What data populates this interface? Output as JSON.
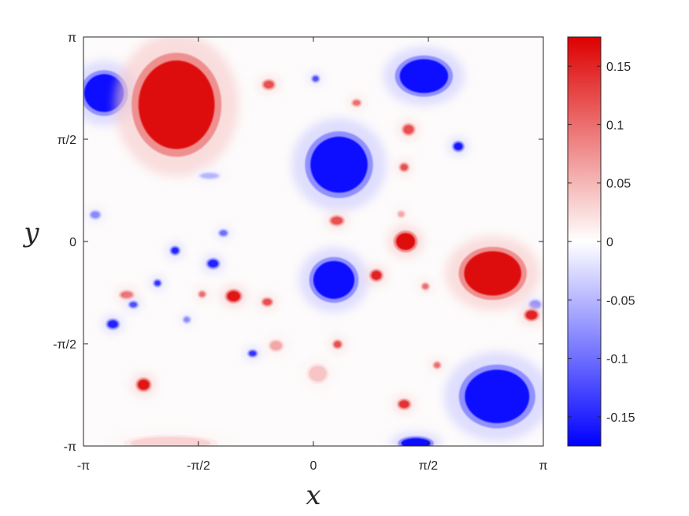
{
  "chart_data": {
    "type": "heatmap",
    "title": "",
    "xlabel": "x",
    "ylabel": "y",
    "xlim": [
      -3.14159,
      3.14159
    ],
    "ylim": [
      -3.14159,
      3.14159
    ],
    "x_ticks": [
      {
        "value": -3.14159,
        "label": "-π"
      },
      {
        "value": -1.5708,
        "label": "-π/2"
      },
      {
        "value": 0,
        "label": "0"
      },
      {
        "value": 1.5708,
        "label": "π/2"
      },
      {
        "value": 3.14159,
        "label": "π"
      }
    ],
    "y_ticks": [
      {
        "value": -3.14159,
        "label": "-π"
      },
      {
        "value": -1.5708,
        "label": "-π/2"
      },
      {
        "value": 0,
        "label": "0"
      },
      {
        "value": 1.5708,
        "label": "π/2"
      },
      {
        "value": 3.14159,
        "label": "π"
      }
    ],
    "colorbar": {
      "min": -0.175,
      "max": 0.175,
      "colors": [
        "#0000ff",
        "#ffffff",
        "#dd0000"
      ],
      "ticks": [
        {
          "value": 0.15,
          "label": "0.15"
        },
        {
          "value": 0.1,
          "label": "0.1"
        },
        {
          "value": 0.05,
          "label": "0.05"
        },
        {
          "value": 0,
          "label": "0"
        },
        {
          "value": -0.05,
          "label": "-0.05"
        },
        {
          "value": -0.1,
          "label": "-0.1"
        },
        {
          "value": -0.15,
          "label": "-0.15"
        }
      ]
    },
    "vortices": [
      {
        "x": -2.86,
        "y": 2.28,
        "rx": 0.27,
        "ry": 0.29,
        "value": -0.17
      },
      {
        "x": -1.87,
        "y": 2.1,
        "rx": 0.52,
        "ry": 0.68,
        "value": 0.17
      },
      {
        "x": 1.51,
        "y": 2.54,
        "rx": 0.33,
        "ry": 0.26,
        "value": -0.17
      },
      {
        "x": 0.35,
        "y": 1.18,
        "rx": 0.39,
        "ry": 0.43,
        "value": -0.17
      },
      {
        "x": 0.28,
        "y": -0.59,
        "rx": 0.28,
        "ry": 0.29,
        "value": -0.17
      },
      {
        "x": 2.45,
        "y": -0.49,
        "rx": 0.39,
        "ry": 0.34,
        "value": 0.17
      },
      {
        "x": 2.51,
        "y": -2.38,
        "rx": 0.44,
        "ry": 0.41,
        "value": -0.17
      },
      {
        "x": -0.61,
        "y": 2.41,
        "rx": 0.07,
        "ry": 0.06,
        "value": 0.12
      },
      {
        "x": 0.03,
        "y": 2.5,
        "rx": 0.04,
        "ry": 0.04,
        "value": -0.12
      },
      {
        "x": 0.59,
        "y": 2.13,
        "rx": 0.05,
        "ry": 0.04,
        "value": 0.1
      },
      {
        "x": 1.3,
        "y": 1.72,
        "rx": 0.07,
        "ry": 0.07,
        "value": 0.12
      },
      {
        "x": 1.98,
        "y": 1.46,
        "rx": 0.06,
        "ry": 0.06,
        "value": -0.16
      },
      {
        "x": 1.24,
        "y": 1.14,
        "rx": 0.05,
        "ry": 0.05,
        "value": 0.12
      },
      {
        "x": -1.42,
        "y": 1.01,
        "rx": 0.12,
        "ry": 0.04,
        "value": -0.05
      },
      {
        "x": -2.98,
        "y": 0.41,
        "rx": 0.06,
        "ry": 0.05,
        "value": -0.08
      },
      {
        "x": 0.32,
        "y": 0.32,
        "rx": 0.08,
        "ry": 0.06,
        "value": 0.12
      },
      {
        "x": 1.2,
        "y": 0.42,
        "rx": 0.04,
        "ry": 0.04,
        "value": 0.06
      },
      {
        "x": 1.26,
        "y": 0.0,
        "rx": 0.13,
        "ry": 0.13,
        "value": 0.17
      },
      {
        "x": -1.23,
        "y": 0.13,
        "rx": 0.05,
        "ry": 0.04,
        "value": -0.1
      },
      {
        "x": -1.89,
        "y": -0.14,
        "rx": 0.05,
        "ry": 0.05,
        "value": -0.15
      },
      {
        "x": -1.37,
        "y": -0.34,
        "rx": 0.07,
        "ry": 0.06,
        "value": -0.15
      },
      {
        "x": 0.86,
        "y": -0.52,
        "rx": 0.07,
        "ry": 0.07,
        "value": 0.15
      },
      {
        "x": -2.13,
        "y": -0.64,
        "rx": 0.04,
        "ry": 0.04,
        "value": -0.14
      },
      {
        "x": -1.09,
        "y": -0.84,
        "rx": 0.09,
        "ry": 0.08,
        "value": 0.16
      },
      {
        "x": -2.55,
        "y": -0.82,
        "rx": 0.08,
        "ry": 0.05,
        "value": 0.1
      },
      {
        "x": -1.52,
        "y": -0.81,
        "rx": 0.04,
        "ry": 0.04,
        "value": 0.1
      },
      {
        "x": -0.63,
        "y": -0.93,
        "rx": 0.06,
        "ry": 0.05,
        "value": 0.12
      },
      {
        "x": -2.46,
        "y": -0.97,
        "rx": 0.05,
        "ry": 0.04,
        "value": -0.12
      },
      {
        "x": 1.53,
        "y": -0.69,
        "rx": 0.04,
        "ry": 0.04,
        "value": 0.1
      },
      {
        "x": 3.03,
        "y": -0.97,
        "rx": 0.07,
        "ry": 0.06,
        "value": -0.08
      },
      {
        "x": 2.98,
        "y": -1.13,
        "rx": 0.08,
        "ry": 0.07,
        "value": 0.15
      },
      {
        "x": -2.74,
        "y": -1.27,
        "rx": 0.07,
        "ry": 0.06,
        "value": -0.15
      },
      {
        "x": -1.73,
        "y": -1.2,
        "rx": 0.04,
        "ry": 0.04,
        "value": -0.08
      },
      {
        "x": -0.51,
        "y": -1.6,
        "rx": 0.08,
        "ry": 0.07,
        "value": 0.06
      },
      {
        "x": 0.33,
        "y": -1.58,
        "rx": 0.05,
        "ry": 0.05,
        "value": 0.12
      },
      {
        "x": -0.83,
        "y": -1.72,
        "rx": 0.05,
        "ry": 0.04,
        "value": -0.14
      },
      {
        "x": 0.06,
        "y": -2.03,
        "rx": 0.12,
        "ry": 0.12,
        "value": 0.04
      },
      {
        "x": 1.69,
        "y": -1.9,
        "rx": 0.04,
        "ry": 0.04,
        "value": 0.1
      },
      {
        "x": -2.32,
        "y": -2.2,
        "rx": 0.08,
        "ry": 0.08,
        "value": 0.16
      },
      {
        "x": 1.24,
        "y": -2.5,
        "rx": 0.07,
        "ry": 0.06,
        "value": 0.14
      },
      {
        "x": 1.4,
        "y": -3.1,
        "rx": 0.2,
        "ry": 0.08,
        "value": -0.17
      },
      {
        "x": -1.95,
        "y": -3.1,
        "rx": 0.55,
        "ry": 0.1,
        "value": 0.03
      }
    ]
  }
}
